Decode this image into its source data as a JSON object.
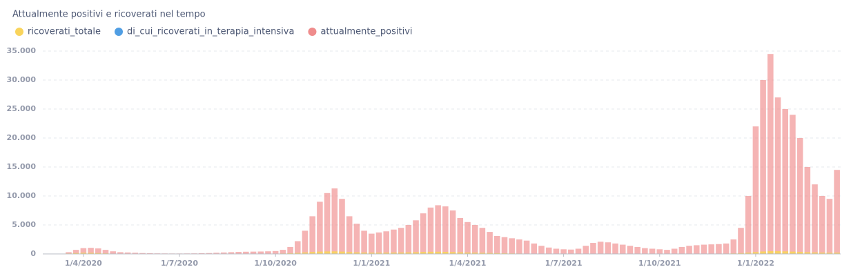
{
  "chart_data": {
    "type": "bar",
    "title": "Attualmente positivi e ricoverati nel tempo",
    "categories": [
      null,
      null,
      null,
      null,
      null,
      "1/4/2020",
      null,
      null,
      null,
      null,
      null,
      null,
      null,
      null,
      null,
      null,
      null,
      null,
      "1/7/2020",
      null,
      null,
      null,
      null,
      null,
      null,
      null,
      null,
      null,
      null,
      null,
      null,
      "1/10/2020",
      null,
      null,
      null,
      null,
      null,
      null,
      null,
      null,
      null,
      null,
      null,
      null,
      "1/1/2021",
      null,
      null,
      null,
      null,
      null,
      null,
      null,
      null,
      null,
      null,
      null,
      null,
      "1/4/2021",
      null,
      null,
      null,
      null,
      null,
      null,
      null,
      null,
      null,
      null,
      null,
      null,
      "1/7/2021",
      null,
      null,
      null,
      null,
      null,
      null,
      null,
      null,
      null,
      null,
      null,
      null,
      "1/10/2021",
      null,
      null,
      null,
      null,
      null,
      null,
      null,
      null,
      null,
      null,
      null,
      null,
      "1/1/2022",
      null,
      null,
      null,
      null,
      null,
      null,
      null,
      null,
      null,
      null,
      null
    ],
    "series": [
      {
        "name": "ricoverati_totale",
        "color": "#f9d45c",
        "values": [
          0,
          5,
          20,
          80,
          150,
          200,
          190,
          150,
          100,
          60,
          40,
          25,
          15,
          10,
          8,
          6,
          5,
          5,
          5,
          5,
          6,
          8,
          10,
          15,
          20,
          25,
          30,
          35,
          40,
          45,
          50,
          60,
          80,
          120,
          180,
          260,
          340,
          400,
          430,
          440,
          400,
          330,
          280,
          240,
          220,
          220,
          230,
          240,
          250,
          270,
          300,
          340,
          370,
          380,
          360,
          320,
          280,
          250,
          220,
          190,
          160,
          130,
          110,
          90,
          70,
          55,
          40,
          30,
          25,
          20,
          18,
          18,
          22,
          30,
          40,
          45,
          45,
          42,
          38,
          34,
          30,
          26,
          24,
          22,
          20,
          22,
          28,
          35,
          40,
          45,
          50,
          55,
          65,
          90,
          140,
          220,
          320,
          420,
          480,
          470,
          440,
          400,
          350,
          300,
          260,
          230,
          210,
          220
        ]
      },
      {
        "name": "di_cui_ricoverati_in_terapia_intensiva",
        "color": "#509ee3",
        "values": [
          0,
          1,
          4,
          15,
          30,
          40,
          38,
          30,
          20,
          12,
          8,
          5,
          3,
          2,
          2,
          1,
          1,
          1,
          1,
          1,
          1,
          2,
          2,
          3,
          4,
          5,
          6,
          7,
          8,
          9,
          10,
          12,
          16,
          24,
          36,
          52,
          68,
          80,
          86,
          88,
          80,
          66,
          56,
          48,
          44,
          44,
          46,
          48,
          50,
          54,
          60,
          68,
          74,
          76,
          72,
          64,
          56,
          50,
          44,
          38,
          32,
          26,
          22,
          18,
          14,
          11,
          8,
          6,
          5,
          4,
          4,
          4,
          4,
          6,
          8,
          9,
          9,
          8,
          8,
          7,
          6,
          5,
          5,
          4,
          4,
          4,
          6,
          7,
          8,
          9,
          10,
          11,
          13,
          18,
          28,
          44,
          64,
          84,
          96,
          94,
          88,
          80,
          70,
          60,
          52,
          46,
          42,
          44
        ]
      },
      {
        "name": "attualmente_positivi",
        "color": "#ef8c8c",
        "values": [
          0,
          10,
          50,
          300,
          700,
          1000,
          1050,
          950,
          700,
          450,
          300,
          250,
          200,
          150,
          120,
          100,
          90,
          80,
          80,
          90,
          100,
          120,
          150,
          200,
          250,
          300,
          350,
          380,
          400,
          420,
          450,
          500,
          700,
          1200,
          2200,
          4000,
          6500,
          9000,
          10500,
          11300,
          9500,
          6500,
          5200,
          4000,
          3500,
          3700,
          3900,
          4200,
          4500,
          5000,
          5800,
          7000,
          8000,
          8400,
          8200,
          7500,
          6200,
          5500,
          5000,
          4500,
          3800,
          3100,
          2900,
          2700,
          2500,
          2300,
          1800,
          1400,
          1100,
          900,
          800,
          750,
          900,
          1400,
          1900,
          2100,
          2000,
          1800,
          1600,
          1400,
          1200,
          1000,
          900,
          800,
          700,
          900,
          1200,
          1400,
          1500,
          1600,
          1650,
          1700,
          1800,
          2500,
          4500,
          10000,
          22000,
          30000,
          34500,
          27000,
          25000,
          24000,
          20000,
          15000,
          12000,
          10000,
          9500,
          14500
        ]
      }
    ],
    "ylim": [
      0,
      35000
    ],
    "yticks": [
      0,
      {
        "value": 5000,
        "label": "5.000"
      },
      {
        "value": 10000,
        "label": "10.000"
      },
      {
        "value": 15000,
        "label": "15.000"
      },
      {
        "value": 20000,
        "label": "20.000"
      },
      {
        "value": 25000,
        "label": "25.000"
      },
      {
        "value": 30000,
        "label": "30.000"
      },
      {
        "value": 35000,
        "label": "35.000"
      }
    ],
    "grid": true
  }
}
